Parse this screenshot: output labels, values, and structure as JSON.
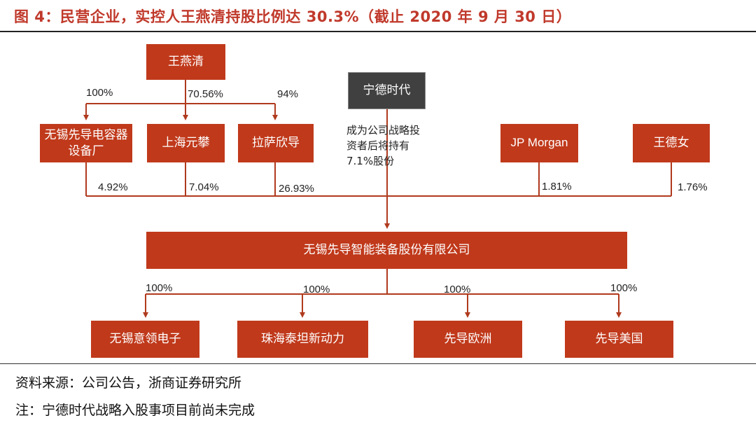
{
  "title": "图 4：民营企业，实控人王燕清持股比例达 30.3%（截止 2020 年 9 月 30 日）",
  "nodes": {
    "wang_yanqing": "王燕清",
    "catl": "宁德时代",
    "wuxi_capacitor": "无锡先导电容器设备厂",
    "shanghai_yuanpan": "上海元攀",
    "lasa_xindao": "拉萨欣导",
    "jp_morgan": "JP Morgan",
    "wang_denv": "王德女",
    "company": "无锡先导智能装备股份有限公司",
    "sub_yiling": "无锡意领电子",
    "sub_taitan": "珠海泰坦新动力",
    "sub_europe": "先导欧洲",
    "sub_usa": "先导美国"
  },
  "labels": {
    "wang_to_capacitor": "100%",
    "wang_to_yuanpan": "70.56%",
    "wang_to_xindao": "94%",
    "capacitor_stake": "4.92%",
    "yuanpan_stake": "7.04%",
    "xindao_stake": "26.93%",
    "jpm_stake": "1.81%",
    "wangdenv_stake": "1.76%",
    "sub_yiling_pct": "100%",
    "sub_taitan_pct": "100%",
    "sub_europe_pct": "100%",
    "sub_usa_pct": "100%"
  },
  "catl_note": {
    "line1": "成为公司战略投",
    "line2": "资者后将持有",
    "line3": "7.1%股份"
  },
  "footer": {
    "source": "资料来源：公司公告，浙商证券研究所",
    "note": "注：宁德时代战略入股事项目前尚未完成"
  },
  "colors": {
    "accent": "#c0391b",
    "title": "#c0392b",
    "catl_box": "#404040",
    "line": "#b03a1e"
  }
}
